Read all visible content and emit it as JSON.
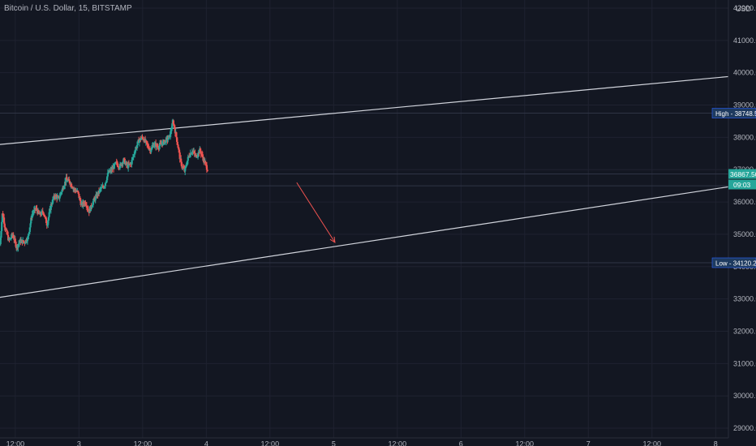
{
  "header": {
    "symbol_title": "Bitcoin / U.S. Dollar, 15, BITSTAMP",
    "currency": "USD"
  },
  "colors": {
    "background": "#131722",
    "up": "#26a69a",
    "down": "#ef5350",
    "trendline": "#d1d4dc",
    "arrow": "#ef5350",
    "grid": "#1f2230"
  },
  "chart_data": {
    "type": "candlestick",
    "title": "Bitcoin / U.S. Dollar, 15, BITSTAMP",
    "ylabel": "USD",
    "ylim": [
      28700,
      42250
    ],
    "y_ticks": [
      29000,
      30000,
      31000,
      32000,
      33000,
      34000,
      35000,
      36000,
      37000,
      38000,
      39000,
      40000,
      41000,
      42000
    ],
    "y_tick_labels": [
      "29000.00",
      "30000.00",
      "31000.00",
      "32000.00",
      "33000.00",
      "34000.00",
      "35000.00",
      "36000.00",
      "37000.00",
      "38000.00",
      "39000.00",
      "40000.00",
      "41000.00",
      "42000.00"
    ],
    "x_tick_labels": [
      "12:00",
      "3",
      "12:00",
      "4",
      "12:00",
      "5",
      "12:00",
      "6",
      "12:00",
      "7",
      "12:00",
      "8"
    ],
    "x_ticks": [
      0.5,
      1.0,
      1.5,
      2.0,
      2.5,
      3.0,
      3.5,
      4.0,
      4.5,
      5.0,
      5.5,
      6.0
    ],
    "xlim": [
      0.38,
      6.1
    ],
    "price_markers": [
      {
        "label": "High",
        "value": "38748.52",
        "price": 38748.52,
        "style": "high"
      },
      {
        "label": "",
        "value": "36867.50",
        "price": 36867.5,
        "style": "current",
        "countdown": "09:03"
      },
      {
        "label": "Low",
        "value": "34120.26",
        "price": 34120.26,
        "style": "low"
      }
    ],
    "horizontal_lines": [
      38748.52,
      36867.5,
      36500,
      34120.26
    ],
    "trendlines": [
      {
        "name": "upper channel",
        "x1": 0.38,
        "y1": 37780,
        "x2": 6.1,
        "y2": 39880
      },
      {
        "name": "lower channel",
        "x1": 0.38,
        "y1": 33050,
        "x2": 6.1,
        "y2": 36470
      }
    ],
    "arrow": {
      "x1": 2.71,
      "y1": 36600,
      "x2": 3.01,
      "y2": 34750
    },
    "price_path": [
      [
        0.38,
        34700
      ],
      [
        0.4,
        35700
      ],
      [
        0.42,
        35200
      ],
      [
        0.45,
        34800
      ],
      [
        0.48,
        35000
      ],
      [
        0.51,
        34600
      ],
      [
        0.54,
        34800
      ],
      [
        0.57,
        34750
      ],
      [
        0.6,
        34900
      ],
      [
        0.63,
        35600
      ],
      [
        0.66,
        35800
      ],
      [
        0.69,
        35600
      ],
      [
        0.72,
        35700
      ],
      [
        0.75,
        35300
      ],
      [
        0.78,
        35900
      ],
      [
        0.81,
        36200
      ],
      [
        0.84,
        36100
      ],
      [
        0.87,
        36400
      ],
      [
        0.9,
        36700
      ],
      [
        0.93,
        36600
      ],
      [
        0.96,
        36400
      ],
      [
        0.99,
        36300
      ],
      [
        1.02,
        35900
      ],
      [
        1.05,
        36000
      ],
      [
        1.08,
        35700
      ],
      [
        1.11,
        36000
      ],
      [
        1.14,
        36200
      ],
      [
        1.17,
        36400
      ],
      [
        1.2,
        36500
      ],
      [
        1.23,
        36900
      ],
      [
        1.26,
        37000
      ],
      [
        1.29,
        37200
      ],
      [
        1.32,
        37100
      ],
      [
        1.35,
        37300
      ],
      [
        1.38,
        37100
      ],
      [
        1.41,
        37200
      ],
      [
        1.44,
        37600
      ],
      [
        1.47,
        37900
      ],
      [
        1.5,
        38000
      ],
      [
        1.53,
        37800
      ],
      [
        1.56,
        37600
      ],
      [
        1.59,
        37800
      ],
      [
        1.62,
        37700
      ],
      [
        1.65,
        37800
      ],
      [
        1.68,
        37900
      ],
      [
        1.71,
        38000
      ],
      [
        1.74,
        38500
      ],
      [
        1.77,
        37900
      ],
      [
        1.8,
        37200
      ],
      [
        1.83,
        36950
      ],
      [
        1.86,
        37400
      ],
      [
        1.89,
        37600
      ],
      [
        1.92,
        37400
      ],
      [
        1.95,
        37600
      ],
      [
        1.98,
        37300
      ],
      [
        2.01,
        37000
      ]
    ]
  }
}
